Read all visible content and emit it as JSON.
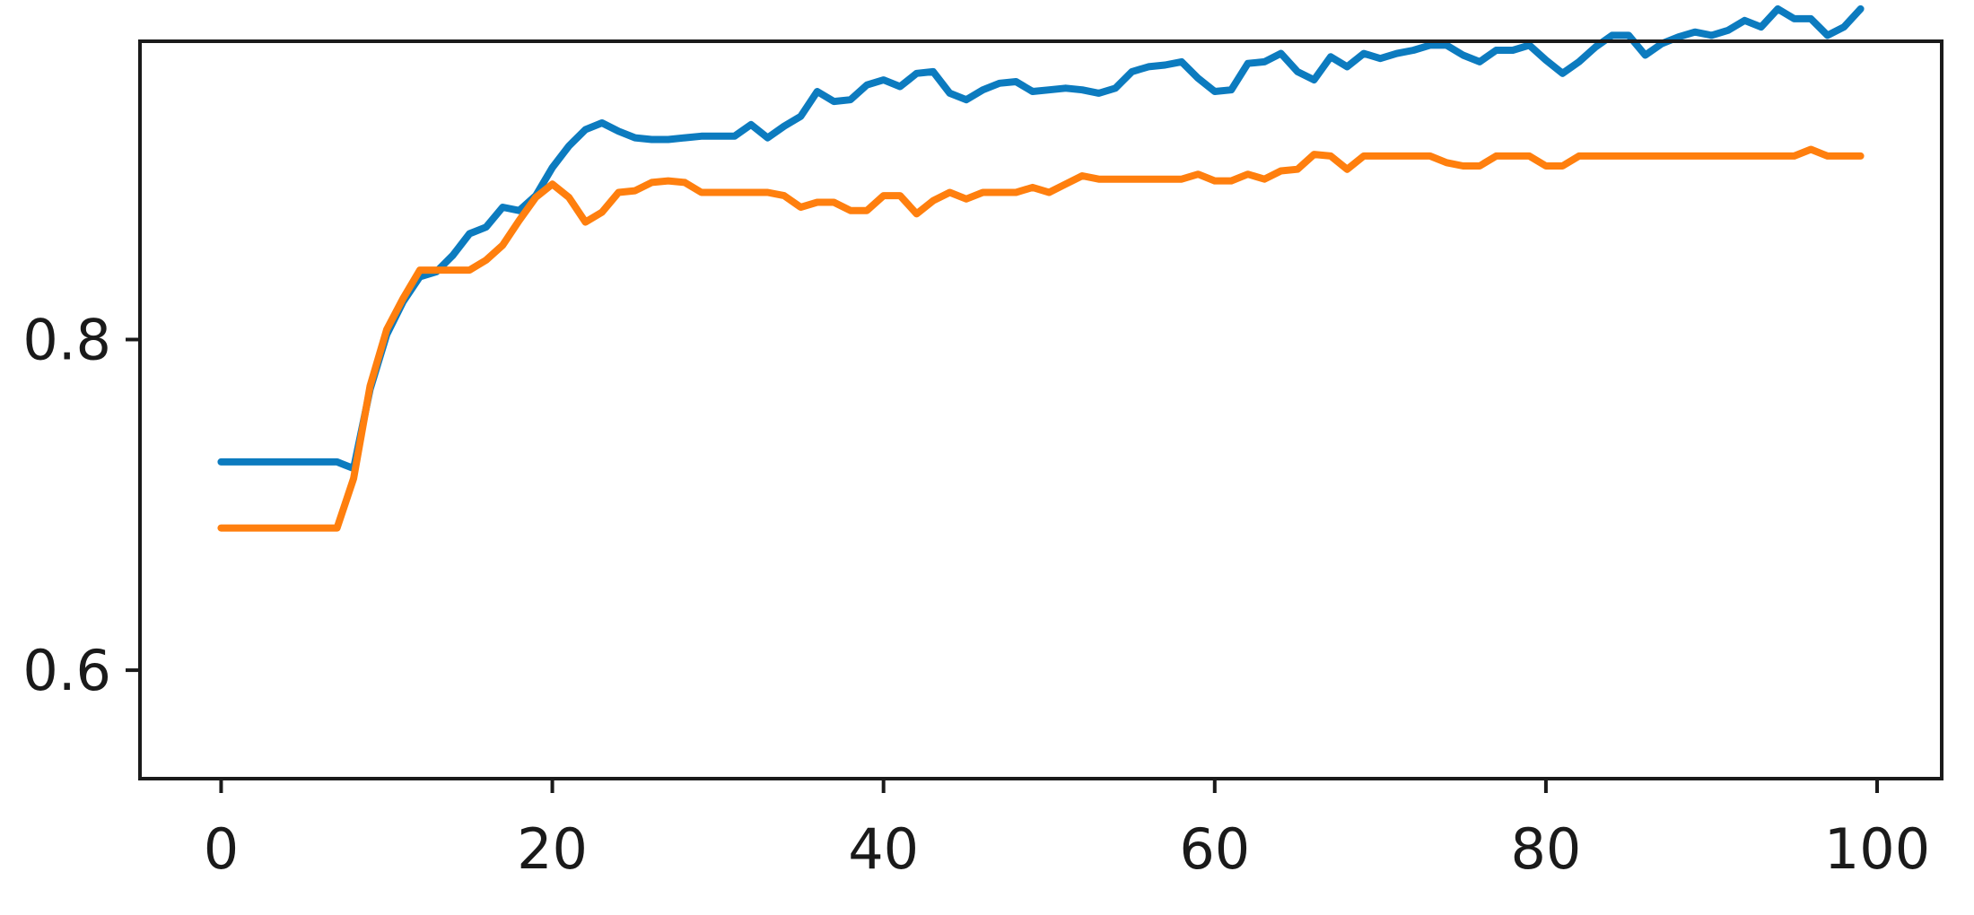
{
  "chart_data": {
    "type": "line",
    "title": "",
    "xlabel": "",
    "ylabel": "",
    "xlim": [
      -4.9,
      103.9
    ],
    "ylim": [
      0.5344,
      0.9804
    ],
    "x_ticks": [
      0,
      20,
      40,
      60,
      80,
      100
    ],
    "x_tick_labels": [
      "0",
      "20",
      "40",
      "60",
      "80",
      "100"
    ],
    "y_ticks": [
      0.6,
      0.8
    ],
    "y_tick_labels": [
      "0.6",
      "0.8"
    ],
    "grid": false,
    "legend": "none",
    "x": [
      0,
      1,
      2,
      3,
      4,
      5,
      6,
      7,
      8,
      9,
      10,
      11,
      12,
      13,
      14,
      15,
      16,
      17,
      18,
      19,
      20,
      21,
      22,
      23,
      24,
      25,
      26,
      27,
      28,
      29,
      30,
      31,
      32,
      33,
      34,
      35,
      36,
      37,
      38,
      39,
      40,
      41,
      42,
      43,
      44,
      45,
      46,
      47,
      48,
      49,
      50,
      51,
      52,
      53,
      54,
      55,
      56,
      57,
      58,
      59,
      60,
      61,
      62,
      63,
      64,
      65,
      66,
      67,
      68,
      69,
      70,
      71,
      72,
      73,
      74,
      75,
      76,
      77,
      78,
      79,
      80,
      81,
      82,
      83,
      84,
      85,
      86,
      87,
      88,
      89,
      90,
      91,
      92,
      93,
      94,
      95,
      96,
      97,
      98,
      99
    ],
    "series": [
      {
        "color": "#0c7bbf",
        "values": [
          0.726,
          0.726,
          0.726,
          0.726,
          0.726,
          0.726,
          0.726,
          0.726,
          0.722,
          0.77,
          0.803,
          0.823,
          0.838,
          0.841,
          0.851,
          0.864,
          0.868,
          0.88,
          0.878,
          0.887,
          0.904,
          0.917,
          0.927,
          0.931,
          0.926,
          0.922,
          0.921,
          0.921,
          0.922,
          0.923,
          0.923,
          0.923,
          0.93,
          0.922,
          0.929,
          0.935,
          0.95,
          0.944,
          0.945,
          0.954,
          0.957,
          0.953,
          0.961,
          0.962,
          0.949,
          0.945,
          0.951,
          0.955,
          0.956,
          0.95,
          0.951,
          0.952,
          0.951,
          0.949,
          0.952,
          0.962,
          0.965,
          0.966,
          0.968,
          0.958,
          0.95,
          0.951,
          0.967,
          0.968,
          0.973,
          0.962,
          0.957,
          0.971,
          0.965,
          0.973,
          0.97,
          0.973,
          0.975,
          0.978,
          0.978,
          0.972,
          0.968,
          0.975,
          0.975,
          0.978,
          0.969,
          0.961,
          0.968,
          0.977,
          0.984,
          0.984,
          0.972,
          0.979,
          0.983,
          0.986,
          0.984,
          0.987,
          0.993,
          0.989,
          1.0,
          0.994,
          0.994,
          0.984,
          0.989,
          1.0
        ]
      },
      {
        "color": "#ff7f0e",
        "values": [
          0.686,
          0.686,
          0.686,
          0.686,
          0.686,
          0.686,
          0.686,
          0.686,
          0.716,
          0.772,
          0.806,
          0.825,
          0.842,
          0.842,
          0.842,
          0.842,
          0.848,
          0.857,
          0.872,
          0.886,
          0.894,
          0.886,
          0.871,
          0.877,
          0.889,
          0.89,
          0.895,
          0.896,
          0.895,
          0.889,
          0.889,
          0.889,
          0.889,
          0.889,
          0.887,
          0.88,
          0.883,
          0.883,
          0.878,
          0.878,
          0.887,
          0.887,
          0.876,
          0.884,
          0.889,
          0.885,
          0.889,
          0.889,
          0.889,
          0.892,
          0.889,
          0.894,
          0.899,
          0.897,
          0.897,
          0.897,
          0.897,
          0.897,
          0.897,
          0.9,
          0.896,
          0.896,
          0.9,
          0.897,
          0.902,
          0.903,
          0.912,
          0.911,
          0.903,
          0.911,
          0.911,
          0.911,
          0.911,
          0.911,
          0.907,
          0.905,
          0.905,
          0.911,
          0.911,
          0.911,
          0.905,
          0.905,
          0.911,
          0.911,
          0.911,
          0.911,
          0.911,
          0.911,
          0.911,
          0.911,
          0.911,
          0.911,
          0.911,
          0.911,
          0.911,
          0.911,
          0.915,
          0.911,
          0.911,
          0.911
        ]
      }
    ]
  }
}
